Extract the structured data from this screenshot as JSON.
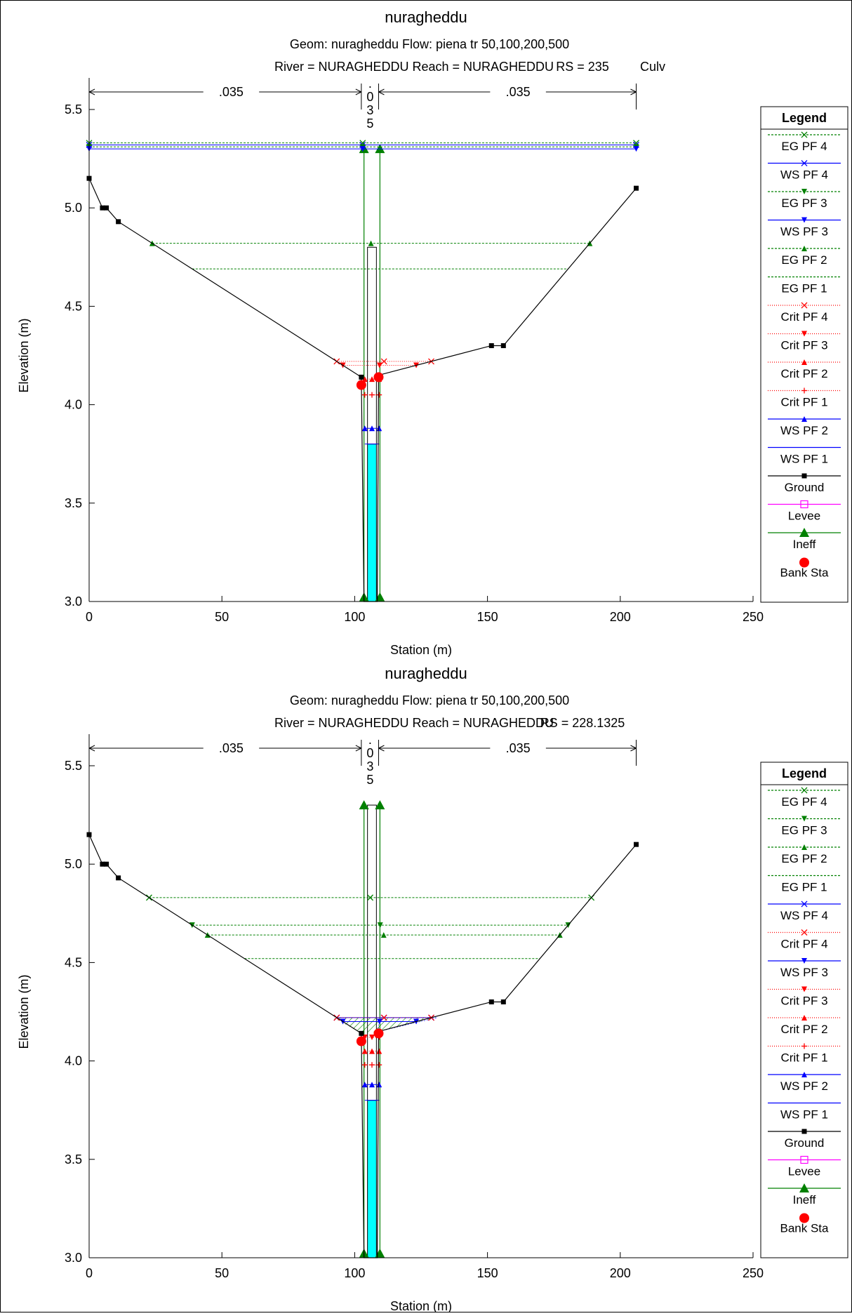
{
  "chart_data": [
    {
      "type": "line",
      "title": "nuragheddu",
      "subtitle_1": "Geom: nuragheddu    Flow: piena tr 50,100,200,500",
      "subtitle_2_left": "River = NURAGHEDDU   Reach = NURAGHEDDU",
      "subtitle_2_rs": "RS = 235",
      "subtitle_2_extra": "Culv",
      "xlabel": "Station (m)",
      "ylabel": "Elevation (m)",
      "xlim": [
        0,
        250
      ],
      "ylim": [
        3.0,
        5.5
      ],
      "xticks": [
        "0",
        "50",
        "100",
        "150",
        "200",
        "250"
      ],
      "yticks": [
        "3.0",
        "3.5",
        "4.0",
        "4.5",
        "5.0",
        "5.5"
      ],
      "mannings": [
        ".035",
        ".\n0\n3\n5",
        ".035"
      ],
      "ground": [
        [
          0,
          5.15
        ],
        [
          5,
          5.0
        ],
        [
          6.5,
          5.0
        ],
        [
          11,
          4.93
        ],
        [
          102.5,
          4.14
        ],
        [
          103.5,
          3.0
        ],
        [
          108.5,
          3.0
        ],
        [
          109,
          4.15
        ],
        [
          151.5,
          4.3
        ],
        [
          156,
          4.3
        ],
        [
          206,
          5.1
        ]
      ],
      "bank_sta": [
        [
          102.5,
          4.1
        ],
        [
          109,
          4.14
        ]
      ],
      "ineff": [
        [
          103.5,
          5.3
        ],
        [
          109.5,
          5.3
        ]
      ],
      "culvert_top": 5.3,
      "culvert_bottom_chord": 4.8,
      "water_fill_top": 5.3,
      "profiles": {
        "EG PF 4": 5.33,
        "WS PF 4": 5.32,
        "EG PF 3": 5.31,
        "WS PF 3": 5.3,
        "EG PF 2": 4.82,
        "EG PF 1": 4.69,
        "Crit PF 4": 4.22,
        "Crit PF 3": 4.2,
        "Crit PF 2": 4.13,
        "Crit PF 1": 4.05,
        "WS PF 2": 3.88,
        "WS PF 1": 3.8
      },
      "legend_title": "Legend",
      "legend": [
        {
          "name": "EG PF 4",
          "color": "#008000",
          "dash": "3,2",
          "marker": "x"
        },
        {
          "name": "WS PF 4",
          "color": "#0000ff",
          "dash": "",
          "marker": "x"
        },
        {
          "name": "EG PF 3",
          "color": "#008000",
          "dash": "3,2",
          "marker": "tri-down"
        },
        {
          "name": "WS PF 3",
          "color": "#0000ff",
          "dash": "",
          "marker": "tri-down"
        },
        {
          "name": "EG PF 2",
          "color": "#008000",
          "dash": "3,2",
          "marker": "tri-up"
        },
        {
          "name": "EG PF 1",
          "color": "#008000",
          "dash": "3,2",
          "marker": "none"
        },
        {
          "name": "Crit PF 4",
          "color": "#ff0000",
          "dash": "1,2",
          "marker": "x"
        },
        {
          "name": "Crit PF 3",
          "color": "#ff0000",
          "dash": "1,2",
          "marker": "tri-down"
        },
        {
          "name": "Crit PF 2",
          "color": "#ff0000",
          "dash": "1,2",
          "marker": "tri-up"
        },
        {
          "name": "Crit PF 1",
          "color": "#ff0000",
          "dash": "1,2",
          "marker": "plus"
        },
        {
          "name": "WS PF 2",
          "color": "#0000ff",
          "dash": "",
          "marker": "tri-up"
        },
        {
          "name": "WS PF 1",
          "color": "#0000ff",
          "dash": "",
          "marker": "none"
        },
        {
          "name": "Ground",
          "color": "#000000",
          "dash": "",
          "marker": "square"
        },
        {
          "name": "Levee",
          "color": "#ff00ff",
          "dash": "",
          "marker": "open-square"
        },
        {
          "name": "Ineff",
          "color": "#008000",
          "dash": "",
          "marker": "big-tri"
        },
        {
          "name": "Bank Sta",
          "color": "#ff0000",
          "dash": "",
          "marker": "dot-only"
        }
      ]
    },
    {
      "type": "line",
      "title": "nuragheddu",
      "subtitle_1": "Geom: nuragheddu    Flow: piena tr 50,100,200,500",
      "subtitle_2_left": "River = NURAGHEDDU   Reach = NURAGHEDDU",
      "subtitle_2_rs": "RS = 228.1325",
      "subtitle_2_extra": "",
      "xlabel": "Station (m)",
      "ylabel": "Elevation (m)",
      "xlim": [
        0,
        250
      ],
      "ylim": [
        3.0,
        5.5
      ],
      "xticks": [
        "0",
        "50",
        "100",
        "150",
        "200",
        "250"
      ],
      "yticks": [
        "3.0",
        "3.5",
        "4.0",
        "4.5",
        "5.0",
        "5.5"
      ],
      "mannings": [
        ".035",
        ".\n0\n3\n5",
        ".035"
      ],
      "ground": [
        [
          0,
          5.15
        ],
        [
          5,
          5.0
        ],
        [
          6.5,
          5.0
        ],
        [
          11,
          4.93
        ],
        [
          102.5,
          4.14
        ],
        [
          103.5,
          3.0
        ],
        [
          108.5,
          3.0
        ],
        [
          109,
          4.15
        ],
        [
          151.5,
          4.3
        ],
        [
          156,
          4.3
        ],
        [
          206,
          5.1
        ]
      ],
      "bank_sta": [
        [
          102.5,
          4.1
        ],
        [
          109,
          4.14
        ]
      ],
      "ineff": [
        [
          103.5,
          5.3
        ],
        [
          109.5,
          5.3
        ]
      ],
      "culvert_top": null,
      "culvert_bottom_chord": 3.8,
      "water_fill_top": 3.8,
      "profiles": {
        "EG PF 4": 4.83,
        "EG PF 3": 4.69,
        "EG PF 2": 4.64,
        "EG PF 1": 4.52,
        "WS PF 4": 4.22,
        "Crit PF 4": 4.22,
        "WS PF 3": 4.2,
        "Crit PF 3": 4.12,
        "Crit PF 2": 4.05,
        "Crit PF 1": 3.98,
        "WS PF 2": 3.88,
        "WS PF 1": 3.8
      },
      "legend_title": "Legend",
      "legend": [
        {
          "name": "EG PF 4",
          "color": "#008000",
          "dash": "3,2",
          "marker": "x"
        },
        {
          "name": "EG PF 3",
          "color": "#008000",
          "dash": "3,2",
          "marker": "tri-down"
        },
        {
          "name": "EG PF 2",
          "color": "#008000",
          "dash": "3,2",
          "marker": "tri-up"
        },
        {
          "name": "EG PF 1",
          "color": "#008000",
          "dash": "3,2",
          "marker": "none"
        },
        {
          "name": "WS PF 4",
          "color": "#0000ff",
          "dash": "",
          "marker": "x"
        },
        {
          "name": "Crit PF 4",
          "color": "#ff0000",
          "dash": "1,2",
          "marker": "x"
        },
        {
          "name": "WS PF 3",
          "color": "#0000ff",
          "dash": "",
          "marker": "tri-down"
        },
        {
          "name": "Crit PF 3",
          "color": "#ff0000",
          "dash": "1,2",
          "marker": "tri-down"
        },
        {
          "name": "Crit PF 2",
          "color": "#ff0000",
          "dash": "1,2",
          "marker": "tri-up"
        },
        {
          "name": "Crit PF 1",
          "color": "#ff0000",
          "dash": "1,2",
          "marker": "plus"
        },
        {
          "name": "WS PF 2",
          "color": "#0000ff",
          "dash": "",
          "marker": "tri-up"
        },
        {
          "name": "WS PF 1",
          "color": "#0000ff",
          "dash": "",
          "marker": "none"
        },
        {
          "name": "Ground",
          "color": "#000000",
          "dash": "",
          "marker": "square"
        },
        {
          "name": "Levee",
          "color": "#ff00ff",
          "dash": "",
          "marker": "open-square"
        },
        {
          "name": "Ineff",
          "color": "#008000",
          "dash": "",
          "marker": "big-tri"
        },
        {
          "name": "Bank Sta",
          "color": "#ff0000",
          "dash": "",
          "marker": "dot-only"
        }
      ]
    }
  ]
}
